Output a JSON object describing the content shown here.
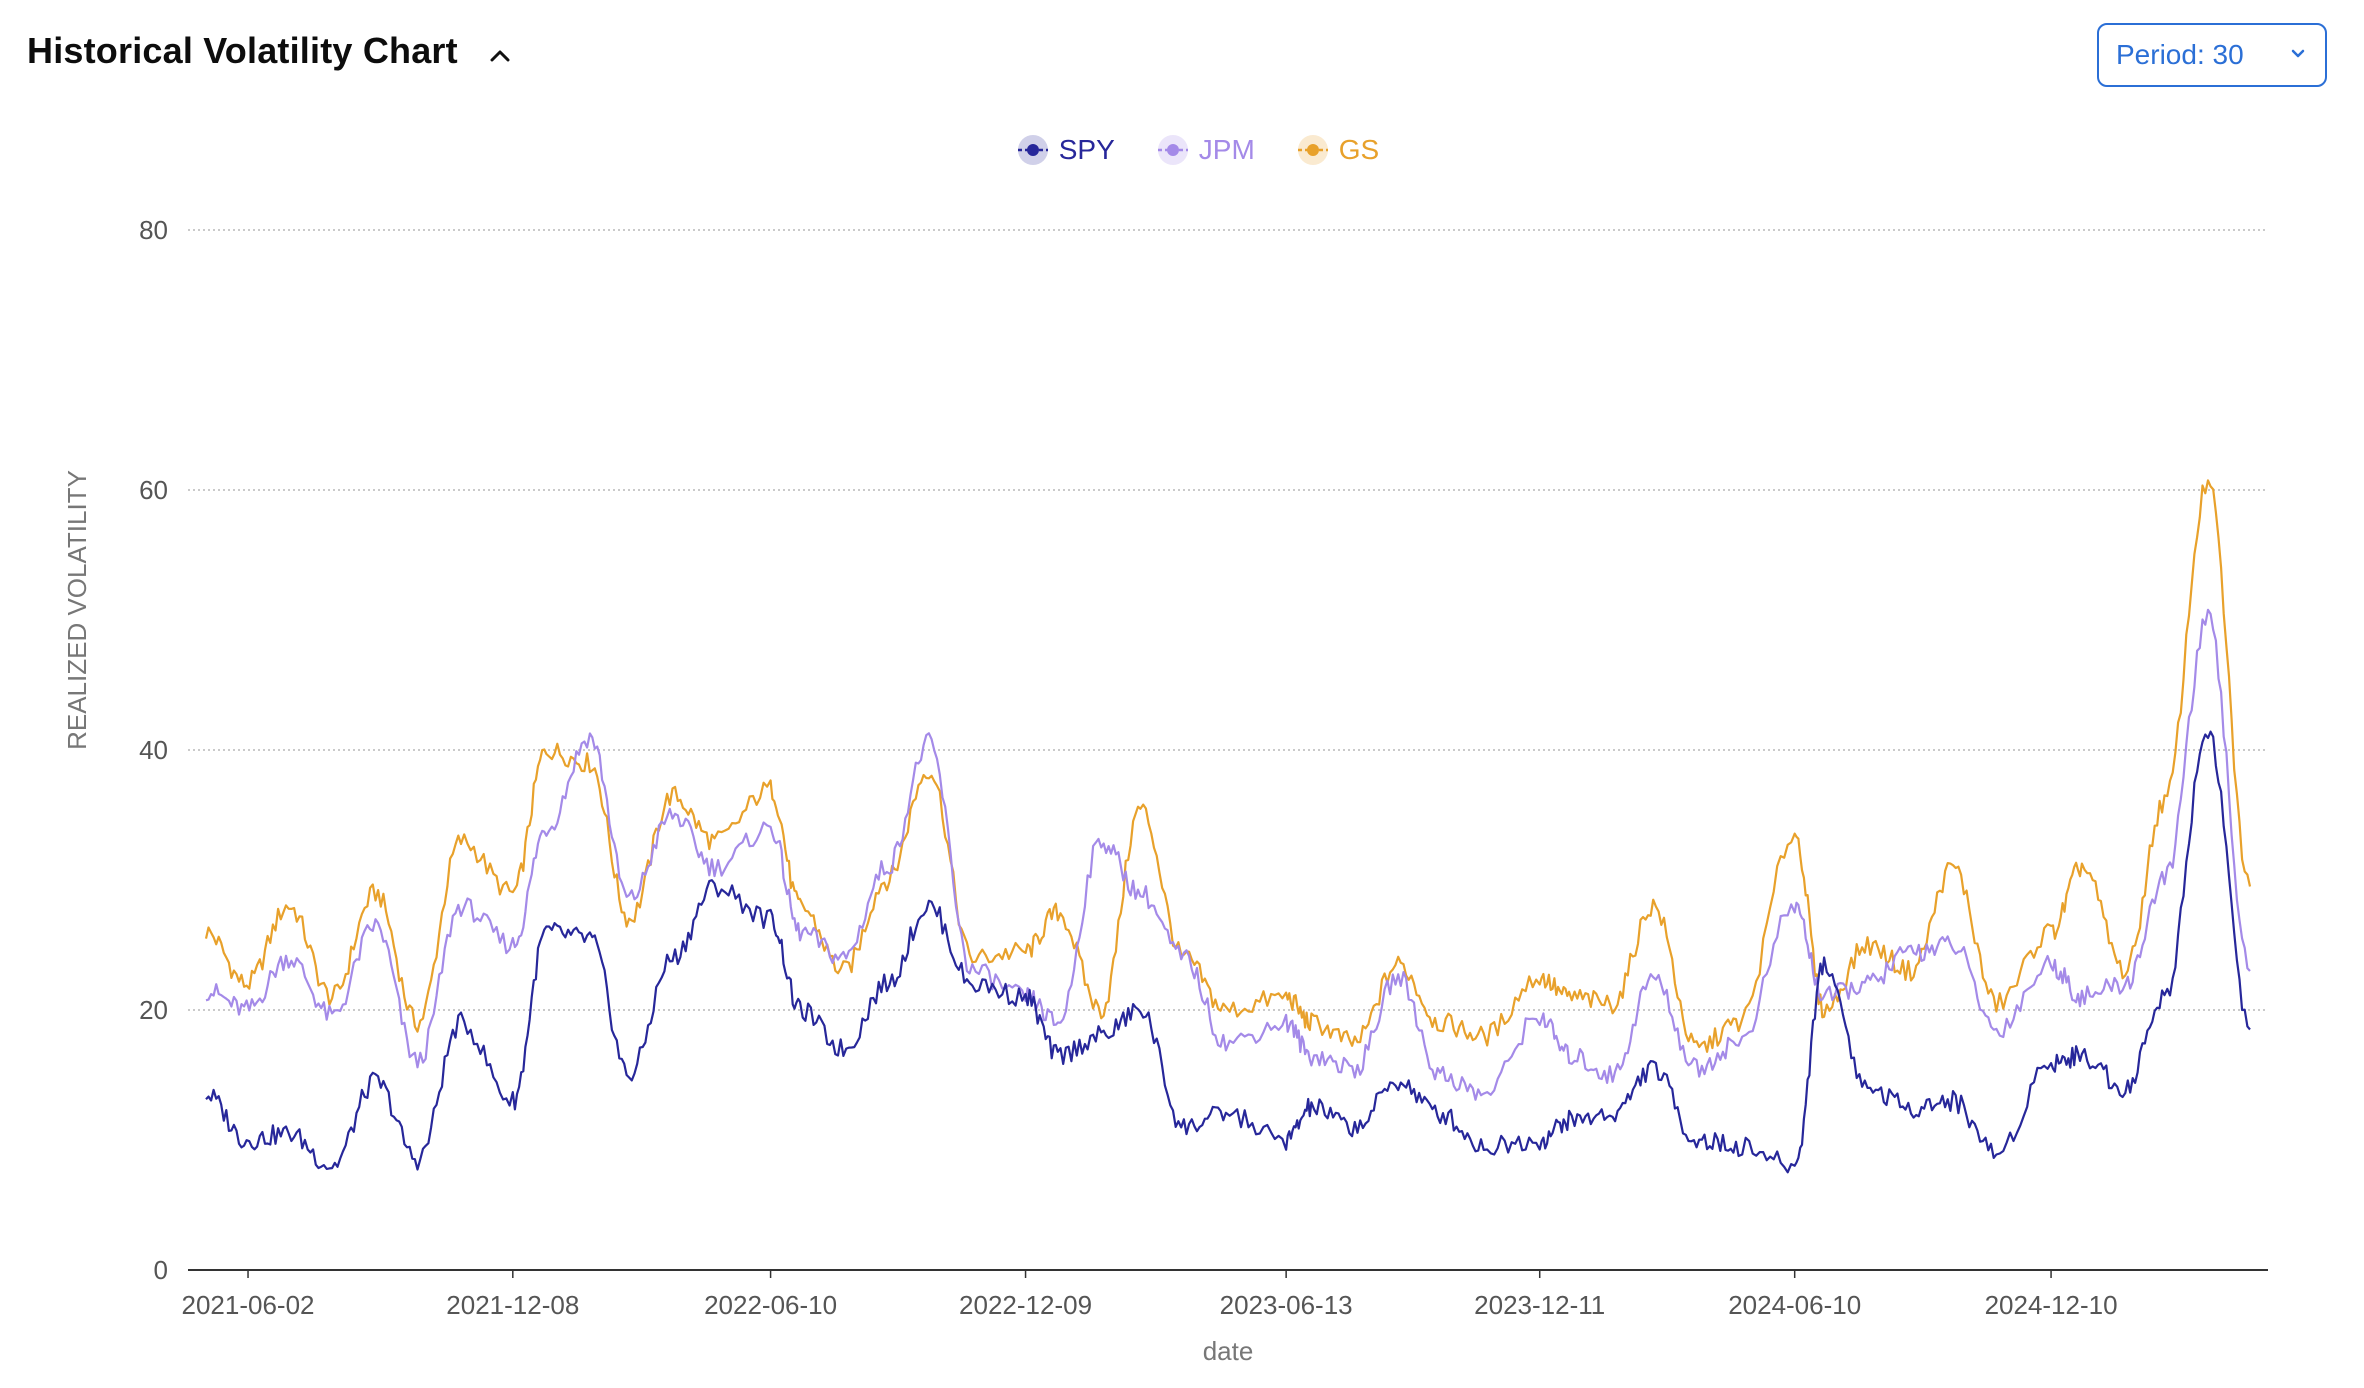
{
  "header": {
    "title": "Historical Volatility Chart",
    "collapse_icon": "chevron-up-icon",
    "period_label": "Period: 30",
    "period_icon": "chevron-down-icon"
  },
  "colors": {
    "SPY": "#27279a",
    "JPM": "#a48ae8",
    "GS": "#e8a12b",
    "accent": "#2b6fd6",
    "grid": "#b8b8b8"
  },
  "chart_data": {
    "type": "line",
    "title": "",
    "xlabel": "date",
    "ylabel": "REALIZED VOLATILITY",
    "ylim": [
      0,
      80
    ],
    "y_ticks": [
      0,
      20,
      40,
      60,
      80
    ],
    "x_range": [
      "2021-05-03",
      "2025-05-01"
    ],
    "x_tick_labels": [
      "2021-06-02",
      "2021-12-08",
      "2022-06-10",
      "2022-12-09",
      "2023-06-13",
      "2023-12-11",
      "2024-06-10",
      "2024-12-10"
    ],
    "grid": "horizontal-dotted",
    "legend_position": "top-center",
    "series": [
      {
        "name": "SPY",
        "x": [
          "2021-05-03",
          "2021-06-01",
          "2021-07-01",
          "2021-08-01",
          "2021-09-01",
          "2021-10-01",
          "2021-11-01",
          "2021-12-08",
          "2022-01-01",
          "2022-02-01",
          "2022-03-01",
          "2022-04-01",
          "2022-05-01",
          "2022-06-10",
          "2022-07-01",
          "2022-08-01",
          "2022-09-01",
          "2022-10-01",
          "2022-11-01",
          "2022-12-09",
          "2023-01-01",
          "2023-02-01",
          "2023-03-01",
          "2023-04-01",
          "2023-05-01",
          "2023-06-13",
          "2023-07-01",
          "2023-08-01",
          "2023-09-01",
          "2023-10-01",
          "2023-11-01",
          "2023-12-11",
          "2024-01-01",
          "2024-02-01",
          "2024-03-01",
          "2024-04-01",
          "2024-05-01",
          "2024-06-10",
          "2024-07-01",
          "2024-08-01",
          "2024-09-01",
          "2024-10-01",
          "2024-11-01",
          "2024-12-10",
          "2025-01-01",
          "2025-02-01",
          "2025-03-01",
          "2025-04-01",
          "2025-05-01"
        ],
        "y": [
          13.5,
          10.0,
          10.5,
          8.0,
          14.5,
          8.5,
          19.0,
          13.0,
          26.0,
          25.5,
          15.0,
          24.0,
          29.5,
          27.0,
          20.0,
          17.0,
          22.0,
          28.0,
          22.0,
          21.0,
          16.5,
          18.0,
          20.0,
          11.0,
          12.0,
          10.0,
          12.5,
          11.0,
          14.5,
          12.0,
          9.5,
          10.0,
          11.5,
          12.0,
          15.5,
          10.0,
          9.5,
          8.0,
          23.5,
          14.0,
          12.5,
          13.0,
          9.0,
          16.0,
          16.5,
          14.0,
          21.0,
          41.5,
          18.5
        ]
      },
      {
        "name": "JPM",
        "x": [
          "2021-05-03",
          "2021-06-01",
          "2021-07-01",
          "2021-08-01",
          "2021-09-01",
          "2021-10-01",
          "2021-11-01",
          "2021-12-08",
          "2022-01-01",
          "2022-02-01",
          "2022-03-01",
          "2022-04-01",
          "2022-05-01",
          "2022-06-10",
          "2022-07-01",
          "2022-08-01",
          "2022-09-01",
          "2022-10-01",
          "2022-11-01",
          "2022-12-09",
          "2023-01-01",
          "2023-02-01",
          "2023-03-01",
          "2023-04-01",
          "2023-05-01",
          "2023-06-13",
          "2023-07-01",
          "2023-08-01",
          "2023-09-01",
          "2023-10-01",
          "2023-11-01",
          "2023-12-11",
          "2024-01-01",
          "2024-02-01",
          "2024-03-01",
          "2024-04-01",
          "2024-05-01",
          "2024-06-10",
          "2024-07-01",
          "2024-08-01",
          "2024-09-01",
          "2024-10-01",
          "2024-11-01",
          "2024-12-10",
          "2025-01-01",
          "2025-02-01",
          "2025-03-01",
          "2025-04-01",
          "2025-05-01"
        ],
        "y": [
          21.5,
          20.0,
          24.0,
          19.5,
          26.5,
          16.0,
          28.0,
          25.0,
          34.0,
          41.0,
          28.5,
          35.0,
          31.0,
          34.0,
          26.0,
          24.0,
          31.0,
          40.5,
          23.0,
          21.0,
          19.0,
          33.0,
          29.0,
          24.0,
          17.5,
          19.0,
          16.5,
          15.5,
          22.5,
          15.0,
          13.5,
          19.5,
          16.5,
          15.0,
          22.5,
          15.5,
          17.5,
          28.0,
          21.0,
          22.0,
          24.5,
          25.0,
          18.5,
          23.5,
          21.0,
          22.0,
          30.0,
          50.0,
          23.0
        ]
      },
      {
        "name": "GS",
        "x": [
          "2021-05-03",
          "2021-06-01",
          "2021-07-01",
          "2021-08-01",
          "2021-09-01",
          "2021-10-01",
          "2021-11-01",
          "2021-12-08",
          "2022-01-01",
          "2022-02-01",
          "2022-03-01",
          "2022-04-01",
          "2022-05-01",
          "2022-06-10",
          "2022-07-01",
          "2022-08-01",
          "2022-09-01",
          "2022-10-01",
          "2022-11-01",
          "2022-12-09",
          "2023-01-01",
          "2023-02-01",
          "2023-03-01",
          "2023-04-01",
          "2023-05-01",
          "2023-06-13",
          "2023-07-01",
          "2023-08-01",
          "2023-09-01",
          "2023-10-01",
          "2023-11-01",
          "2023-12-11",
          "2024-01-01",
          "2024-02-01",
          "2024-03-01",
          "2024-04-01",
          "2024-05-01",
          "2024-06-10",
          "2024-07-01",
          "2024-08-01",
          "2024-09-01",
          "2024-10-01",
          "2024-11-01",
          "2024-12-10",
          "2025-01-01",
          "2025-02-01",
          "2025-03-01",
          "2025-04-01",
          "2025-05-01"
        ],
        "y": [
          26.0,
          22.0,
          28.0,
          21.0,
          29.0,
          19.0,
          33.0,
          29.0,
          40.0,
          39.0,
          27.0,
          36.5,
          33.0,
          37.0,
          28.0,
          23.0,
          30.0,
          38.5,
          24.0,
          24.5,
          27.5,
          20.0,
          35.5,
          24.0,
          20.0,
          21.0,
          19.0,
          17.5,
          23.5,
          19.0,
          18.0,
          22.5,
          21.0,
          20.5,
          28.0,
          17.0,
          19.0,
          33.5,
          20.0,
          25.0,
          23.0,
          31.0,
          20.5,
          26.0,
          31.0,
          23.0,
          36.0,
          60.5,
          29.5
        ]
      }
    ]
  }
}
